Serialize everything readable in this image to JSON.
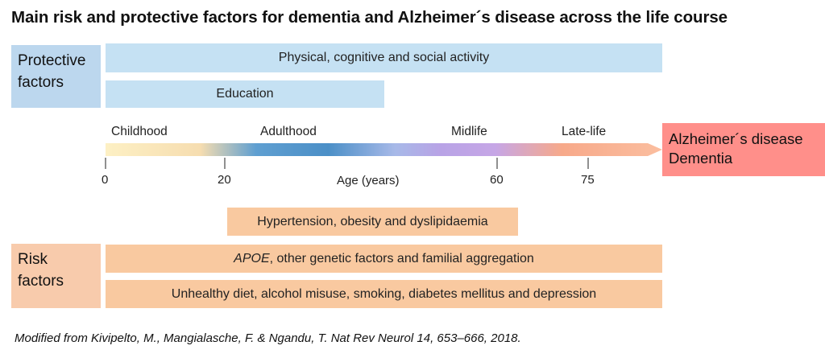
{
  "title": "Main risk and protective factors for dementia and Alzheimer´s  disease across the life course",
  "protective": {
    "label_line1": "Protective",
    "label_line2": "factors",
    "bars": [
      "Physical, cognitive and social activity",
      "Education"
    ]
  },
  "timeline": {
    "stages": [
      "Childhood",
      "Adulthood",
      "Midlife",
      "Late-life"
    ],
    "ticks": [
      "0",
      "20",
      "60",
      "75"
    ],
    "axis_label": "Age (years)"
  },
  "outcome": {
    "line1": "Alzheimer´s disease",
    "line2": "Dementia"
  },
  "risk": {
    "label_line1": "Risk",
    "label_line2": "factors",
    "bar1": "Hypertension, obesity and dyslipidaemia",
    "bar2_gene": "APOE",
    "bar2_rest": ", other genetic factors and familial aggregation",
    "bar3": "Unhealthy diet, alcohol misuse, smoking, diabetes mellitus and depression"
  },
  "footer": "Modified from Kivipelto, M., Mangialasche, F. & Ngandu, T. Nat Rev Neurol 14, 653–666, 2018.",
  "colors": {
    "protective": "#c5e1f3",
    "risk": "#f9c9a0",
    "outcome": "#ff8f8a"
  }
}
